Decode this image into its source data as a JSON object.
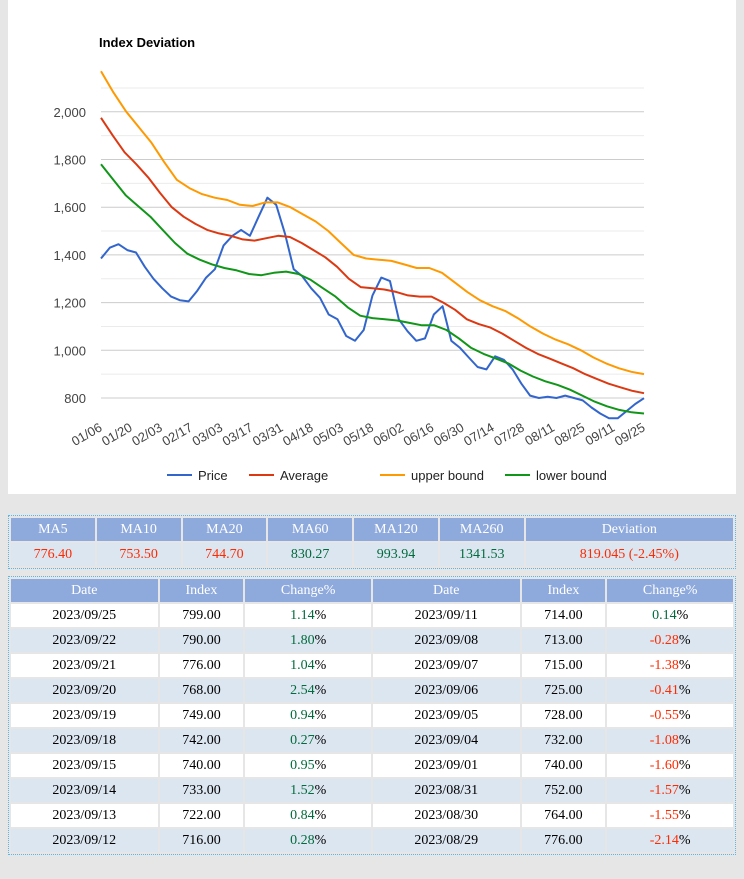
{
  "chart_data": {
    "type": "line",
    "title": "Index Deviation",
    "xlabel": "",
    "ylabel": "",
    "ylim": [
      700,
      2150
    ],
    "yticks": [
      800,
      1000,
      1200,
      1400,
      1600,
      1800,
      2000
    ],
    "ytick_labels": [
      "800",
      "1,000",
      "1,200",
      "1,400",
      "1,600",
      "1,800",
      "2,000"
    ],
    "grid": true,
    "legend_position": "bottom",
    "x_tick_labels": [
      "01/06",
      "01/20",
      "02/03",
      "02/17",
      "03/03",
      "03/17",
      "03/31",
      "04/18",
      "05/03",
      "05/18",
      "06/02",
      "06/16",
      "06/30",
      "07/14",
      "07/28",
      "08/11",
      "08/25",
      "09/11",
      "09/25"
    ],
    "x_positions": [
      0,
      0.0185,
      0.037,
      0.0556,
      0.0741,
      0.0926,
      0.1111,
      0.1296,
      0.1481,
      0.1667,
      0.1852,
      0.2037,
      0.2222,
      0.2407,
      0.2593,
      0.2778,
      0.2963,
      0.3148,
      0.3333,
      0.3519,
      0.3704,
      0.3889,
      0.4074,
      0.4259,
      0.4444,
      0.463,
      0.4815,
      0.5,
      0.5185,
      0.537,
      0.5556,
      0.5741,
      0.5926,
      0.6111,
      0.6296,
      0.6481,
      0.6667,
      0.6852,
      0.7037,
      0.7222,
      0.7407,
      0.7593,
      0.7778,
      0.7963,
      0.8148,
      0.8333,
      0.8519,
      0.8704,
      0.8889,
      0.9074,
      0.9259,
      0.9444,
      0.963,
      0.9815,
      1
    ],
    "series": [
      {
        "name": "Price",
        "color": "#3366cc",
        "values": [
          1385,
          1430,
          1445,
          1420,
          1410,
          1350,
          1300,
          1260,
          1225,
          1210,
          1205,
          1250,
          1305,
          1340,
          1440,
          1480,
          1505,
          1480,
          1560,
          1640,
          1610,
          1490,
          1340,
          1310,
          1260,
          1220,
          1150,
          1130,
          1060,
          1040,
          1085,
          1230,
          1305,
          1290,
          1130,
          1080,
          1040,
          1050,
          1150,
          1185,
          1040,
          1010,
          970,
          930,
          920,
          975,
          960,
          920,
          860,
          810,
          800,
          805,
          800,
          810,
          800,
          790,
          760,
          735,
          715,
          715,
          745,
          775,
          799
        ]
      },
      {
        "name": "Average",
        "color": "#dc3912",
        "values": [
          1975,
          1900,
          1830,
          1780,
          1725,
          1660,
          1600,
          1560,
          1530,
          1505,
          1490,
          1480,
          1465,
          1460,
          1470,
          1480,
          1475,
          1450,
          1420,
          1390,
          1350,
          1300,
          1265,
          1260,
          1255,
          1245,
          1230,
          1225,
          1225,
          1200,
          1170,
          1130,
          1110,
          1095,
          1070,
          1040,
          1010,
          985,
          965,
          945,
          925,
          900,
          880,
          860,
          845,
          830,
          820
        ]
      },
      {
        "name": "upper bound",
        "color": "#ff9900",
        "values": [
          2170,
          2080,
          2000,
          1935,
          1870,
          1790,
          1715,
          1680,
          1655,
          1640,
          1630,
          1610,
          1605,
          1620,
          1620,
          1600,
          1570,
          1540,
          1500,
          1450,
          1400,
          1385,
          1380,
          1375,
          1360,
          1345,
          1345,
          1325,
          1285,
          1245,
          1210,
          1185,
          1165,
          1135,
          1100,
          1070,
          1045,
          1025,
          1000,
          970,
          945,
          925,
          910,
          900
        ]
      },
      {
        "name": "lower bound",
        "color": "#109618",
        "values": [
          1780,
          1715,
          1650,
          1605,
          1560,
          1505,
          1450,
          1405,
          1380,
          1360,
          1345,
          1335,
          1320,
          1315,
          1325,
          1330,
          1320,
          1295,
          1260,
          1225,
          1180,
          1145,
          1135,
          1130,
          1125,
          1115,
          1105,
          1105,
          1085,
          1050,
          1010,
          985,
          965,
          945,
          915,
          890,
          870,
          855,
          835,
          810,
          785,
          765,
          750,
          740,
          735
        ]
      }
    ]
  },
  "ma_table": {
    "headers": [
      "MA5",
      "MA10",
      "MA20",
      "MA60",
      "MA120",
      "MA260",
      "Deviation"
    ],
    "values": [
      {
        "text": "776.40",
        "color": "red"
      },
      {
        "text": "753.50",
        "color": "red"
      },
      {
        "text": "744.70",
        "color": "red"
      },
      {
        "text": "830.27",
        "color": "green"
      },
      {
        "text": "993.94",
        "color": "green"
      },
      {
        "text": "1341.53",
        "color": "green"
      },
      {
        "text": "819.045 (-2.45%)",
        "color": "red"
      }
    ]
  },
  "history_table": {
    "headers": [
      "Date",
      "Index",
      "Change%",
      "Date",
      "Index",
      "Change%"
    ],
    "rows": [
      {
        "left": {
          "date": "2023/09/25",
          "index": "799.00",
          "change": "1.14",
          "dir": "green"
        },
        "right": {
          "date": "2023/09/11",
          "index": "714.00",
          "change": "0.14",
          "dir": "green"
        }
      },
      {
        "left": {
          "date": "2023/09/22",
          "index": "790.00",
          "change": "1.80",
          "dir": "green"
        },
        "right": {
          "date": "2023/09/08",
          "index": "713.00",
          "change": "-0.28",
          "dir": "red"
        }
      },
      {
        "left": {
          "date": "2023/09/21",
          "index": "776.00",
          "change": "1.04",
          "dir": "green"
        },
        "right": {
          "date": "2023/09/07",
          "index": "715.00",
          "change": "-1.38",
          "dir": "red"
        }
      },
      {
        "left": {
          "date": "2023/09/20",
          "index": "768.00",
          "change": "2.54",
          "dir": "green"
        },
        "right": {
          "date": "2023/09/06",
          "index": "725.00",
          "change": "-0.41",
          "dir": "red"
        }
      },
      {
        "left": {
          "date": "2023/09/19",
          "index": "749.00",
          "change": "0.94",
          "dir": "green"
        },
        "right": {
          "date": "2023/09/05",
          "index": "728.00",
          "change": "-0.55",
          "dir": "red"
        }
      },
      {
        "left": {
          "date": "2023/09/18",
          "index": "742.00",
          "change": "0.27",
          "dir": "green"
        },
        "right": {
          "date": "2023/09/04",
          "index": "732.00",
          "change": "-1.08",
          "dir": "red"
        }
      },
      {
        "left": {
          "date": "2023/09/15",
          "index": "740.00",
          "change": "0.95",
          "dir": "green"
        },
        "right": {
          "date": "2023/09/01",
          "index": "740.00",
          "change": "-1.60",
          "dir": "red"
        }
      },
      {
        "left": {
          "date": "2023/09/14",
          "index": "733.00",
          "change": "1.52",
          "dir": "green"
        },
        "right": {
          "date": "2023/08/31",
          "index": "752.00",
          "change": "-1.57",
          "dir": "red"
        }
      },
      {
        "left": {
          "date": "2023/09/13",
          "index": "722.00",
          "change": "0.84",
          "dir": "green"
        },
        "right": {
          "date": "2023/08/30",
          "index": "764.00",
          "change": "-1.55",
          "dir": "red"
        }
      },
      {
        "left": {
          "date": "2023/09/12",
          "index": "716.00",
          "change": "0.28",
          "dir": "green"
        },
        "right": {
          "date": "2023/08/29",
          "index": "776.00",
          "change": "-2.14",
          "dir": "red"
        }
      }
    ],
    "percent_sign": "%"
  }
}
